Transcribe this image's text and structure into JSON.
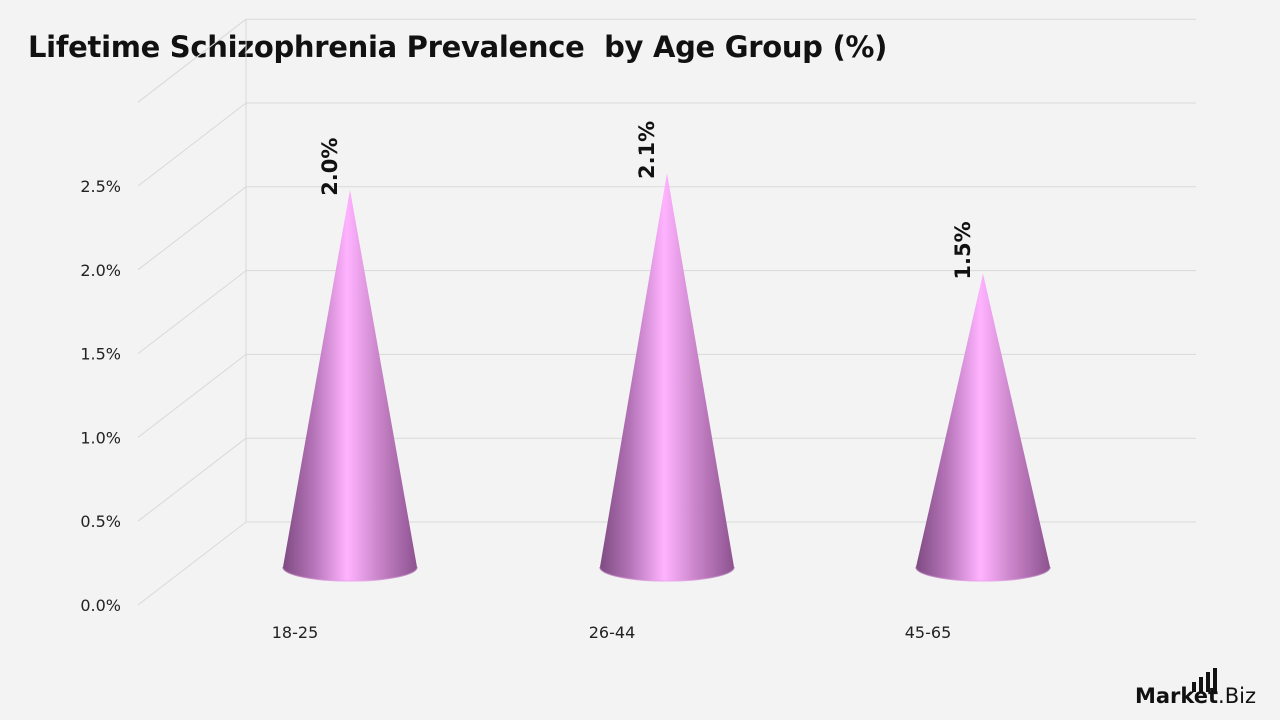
{
  "title": "Lifetime Schizophrenia Prevalence  by Age Group (%)",
  "brand": {
    "part1": "Market",
    "part2": ".Biz",
    "icon": "bar-chart-icon"
  },
  "colors": {
    "background": "#f4f3f4",
    "grid": "#d9d9d9",
    "cone_light": "#ffb0ff",
    "cone_mid": "#d98bd8",
    "cone_dark": "#8a4f8c"
  },
  "chart_data": {
    "type": "bar",
    "shape": "cone",
    "title": "Lifetime Schizophrenia Prevalence  by Age Group (%)",
    "categories": [
      "18-25",
      "26-44",
      "45-65"
    ],
    "values": [
      2.0,
      2.1,
      1.5
    ],
    "data_labels": [
      "2.0%",
      "2.1%",
      "1.5%"
    ],
    "y_ticks": [
      "0.0%",
      "0.5%",
      "1.0%",
      "1.5%",
      "2.0%",
      "2.5%"
    ],
    "y_tick_values": [
      0,
      0.5,
      1.0,
      1.5,
      2.0,
      2.5
    ],
    "ylim": [
      0,
      3.0
    ],
    "xlabel": "",
    "ylabel": "",
    "grid": true,
    "legend": "none"
  }
}
